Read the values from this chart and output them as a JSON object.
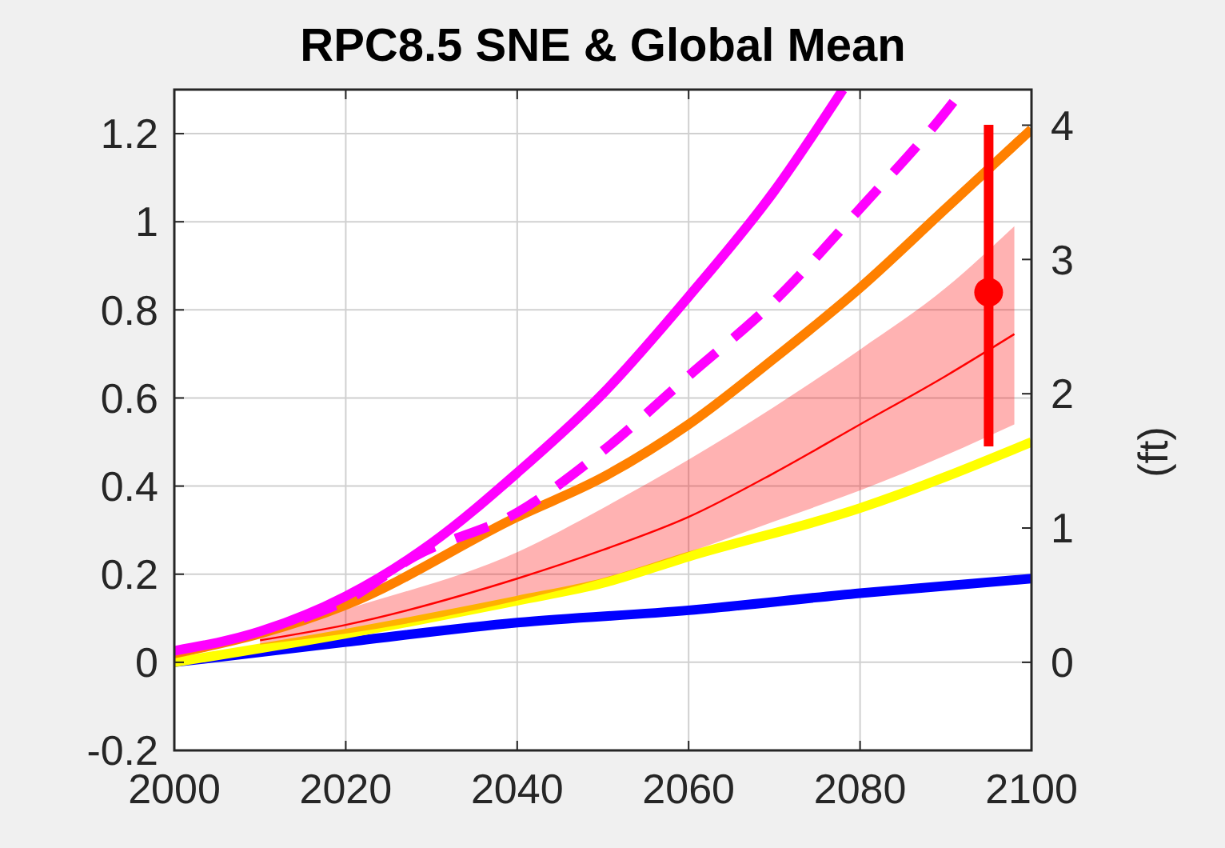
{
  "chart_data": {
    "type": "line",
    "title": "RPC8.5 SNE & Global Mean",
    "y2label": "(ft)",
    "xlim": [
      2000,
      2100
    ],
    "xticks": [
      2000,
      2020,
      2040,
      2060,
      2080,
      2100
    ],
    "ylim": [
      -0.2,
      1.3
    ],
    "yticks": [
      -0.2,
      0,
      0.2,
      0.4,
      0.6,
      0.8,
      1,
      1.2
    ],
    "y2lim": [
      -0.656,
      4.265
    ],
    "y2ticks": [
      0,
      1,
      2,
      3,
      4
    ],
    "grid": true,
    "series": [
      {
        "color": "#0000ff",
        "line_style": "solid",
        "x": [
          2000,
          2020,
          2040,
          2060,
          2080,
          2100
        ],
        "values": [
          0,
          0.046,
          0.09,
          0.118,
          0.157,
          0.19
        ]
      },
      {
        "color": "#ffff00",
        "line_style": "solid",
        "x": [
          2000,
          2020,
          2040,
          2050,
          2060,
          2080,
          2100
        ],
        "values": [
          0,
          0.065,
          0.14,
          0.18,
          0.24,
          0.35,
          0.5
        ]
      },
      {
        "color": "#ff0000",
        "line_style": "solid",
        "x": [
          2010,
          2020,
          2040,
          2050,
          2060,
          2070,
          2080,
          2090,
          2098
        ],
        "values": [
          0.05,
          0.085,
          0.19,
          0.255,
          0.33,
          0.43,
          0.54,
          0.65,
          0.745
        ],
        "lower": [
          0.04,
          0.065,
          0.14,
          0.19,
          0.25,
          0.32,
          0.39,
          0.47,
          0.54
        ],
        "upper": [
          0.06,
          0.12,
          0.25,
          0.35,
          0.46,
          0.58,
          0.71,
          0.85,
          0.99
        ]
      },
      {
        "color": "#ff8000",
        "line_style": "solid",
        "x": [
          2000,
          2010,
          2020,
          2040,
          2050,
          2060,
          2070,
          2080,
          2090,
          2100
        ],
        "values": [
          0.02,
          0.065,
          0.13,
          0.33,
          0.42,
          0.54,
          0.69,
          0.85,
          1.03,
          1.21
        ]
      },
      {
        "color": "#ff00ff",
        "line_style": "dashed",
        "x": [
          2015,
          2020,
          2028,
          2040,
          2050,
          2060,
          2070,
          2080,
          2090,
          2092
        ],
        "values": [
          0.1,
          0.14,
          0.24,
          0.34,
          0.48,
          0.65,
          0.82,
          1.03,
          1.25,
          1.3
        ]
      },
      {
        "color": "#ff00ff",
        "line_style": "solid",
        "x": [
          2000,
          2010,
          2020,
          2030,
          2040,
          2050,
          2060,
          2070,
          2078
        ],
        "values": [
          0.026,
          0.07,
          0.15,
          0.27,
          0.43,
          0.61,
          0.83,
          1.07,
          1.3
        ]
      },
      {
        "type": "scatter",
        "marker": "circle",
        "color": "#ff0000",
        "x": [
          2095
        ],
        "values": [
          0.84
        ],
        "errors": [
          [
            0.49,
            1.22
          ]
        ]
      }
    ]
  }
}
